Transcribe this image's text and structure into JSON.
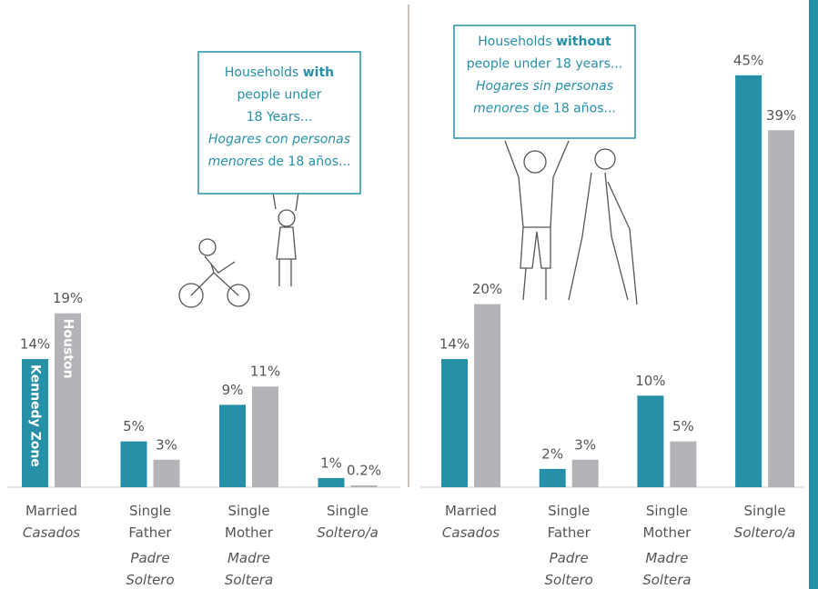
{
  "chart_data": [
    {
      "type": "bar",
      "annotation": [
        [
          {
            "text": "Households "
          },
          {
            "text": "with",
            "bold": true
          }
        ],
        [
          {
            "text": "people under"
          }
        ],
        [
          {
            "text": "18 Years..."
          }
        ],
        [
          {
            "text": "Hogares con personas",
            "italic": true
          }
        ],
        [
          {
            "text": "menores",
            "italic": true
          },
          {
            "text": " de 18 años..."
          }
        ]
      ],
      "categories": [
        "Married",
        "Single Father",
        "Single Mother",
        "Single"
      ],
      "categories_es": [
        "Casados",
        "Padre Soltero",
        "Madre Soltera",
        "Soltero/a"
      ],
      "series": [
        {
          "name": "Kennedy Zone",
          "color": "#2590a8",
          "values": [
            14,
            5,
            9,
            1
          ],
          "value_labels": [
            "14%",
            "5%",
            "9%",
            "1%"
          ]
        },
        {
          "name": "Houston",
          "color": "#b4b4b8",
          "values": [
            19,
            3,
            11,
            0.2
          ],
          "value_labels": [
            "19%",
            "3%",
            "11%",
            "0.2%"
          ]
        }
      ]
    },
    {
      "type": "bar",
      "annotation": [
        [
          {
            "text": "Households "
          },
          {
            "text": "without",
            "bold": true
          }
        ],
        [
          {
            "text": "people under 18 years..."
          }
        ],
        [
          {
            "text": "Hogares sin personas",
            "italic": true
          }
        ],
        [
          {
            "text": "menores",
            "italic": true
          },
          {
            "text": " de 18 años..."
          }
        ]
      ],
      "categories": [
        "Married",
        "Single Father",
        "Single Mother",
        "Single"
      ],
      "categories_es": [
        "Casados",
        "Padre Soltero",
        "Madre Soltera",
        "Soltero/a"
      ],
      "series": [
        {
          "name": "Kennedy Zone",
          "color": "#2590a8",
          "values": [
            14,
            2,
            10,
            45
          ],
          "value_labels": [
            "14%",
            "2%",
            "10%",
            "45%"
          ]
        },
        {
          "name": "Houston",
          "color": "#b4b4b8",
          "values": [
            20,
            3,
            5,
            39
          ],
          "value_labels": [
            "20%",
            "3%",
            "5%",
            "39%"
          ]
        }
      ]
    }
  ]
}
